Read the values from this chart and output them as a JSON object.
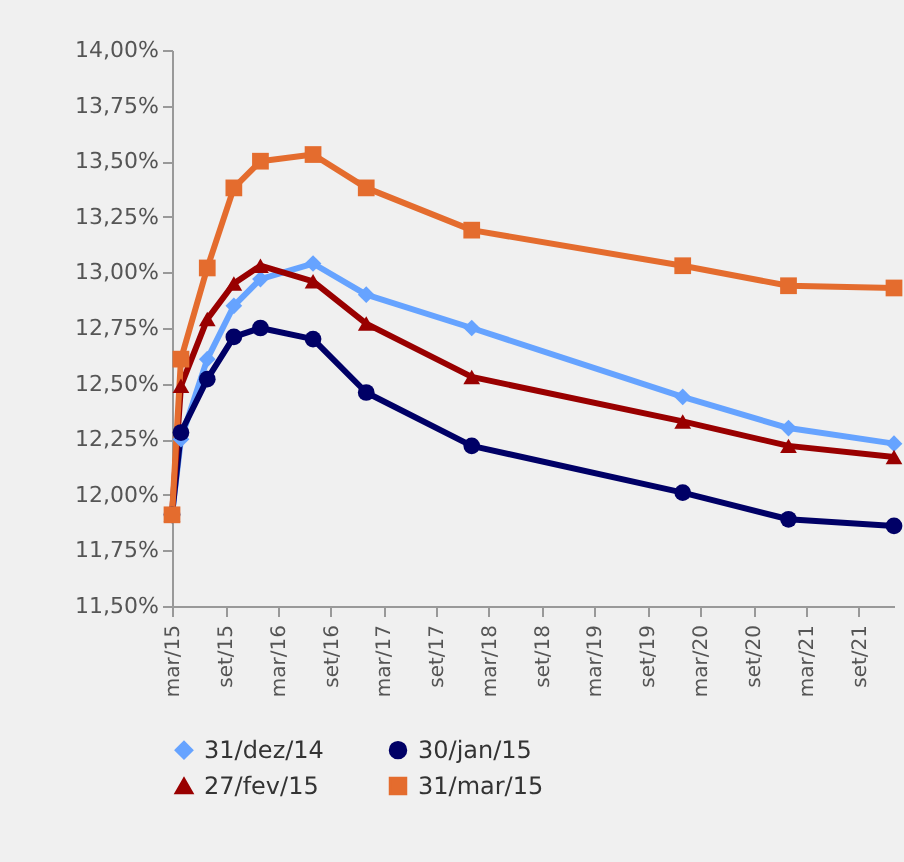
{
  "chart_data": {
    "type": "line",
    "x": [
      "2015-03",
      "2015-04",
      "2015-07",
      "2015-10",
      "2016-01",
      "2016-07",
      "2017-01",
      "2018-01",
      "2020-01",
      "2021-01",
      "2022-01"
    ],
    "series": [
      {
        "name": "31/dez/14",
        "color": "#66a3ff",
        "marker": "diamond",
        "values": [
          11.91,
          12.25,
          12.61,
          12.85,
          12.97,
          13.04,
          12.9,
          12.75,
          12.44,
          12.3,
          12.23
        ]
      },
      {
        "name": "30/jan/15",
        "color": "#000066",
        "marker": "circle",
        "values": [
          11.91,
          12.28,
          12.52,
          12.71,
          12.75,
          12.7,
          12.46,
          12.22,
          12.01,
          11.89,
          11.86
        ]
      },
      {
        "name": "27/fev/15",
        "color": "#990000",
        "marker": "triangle",
        "values": [
          11.91,
          12.49,
          12.79,
          12.95,
          13.03,
          12.96,
          12.77,
          12.53,
          12.33,
          12.22,
          12.17
        ]
      },
      {
        "name": "31/mar/15",
        "color": "#e46c2e",
        "marker": "square",
        "values": [
          11.91,
          12.61,
          13.02,
          13.38,
          13.5,
          13.53,
          13.38,
          13.19,
          13.03,
          12.94,
          12.93
        ]
      }
    ],
    "xlim": [
      "2015-03",
      "2022-01"
    ],
    "xticks": [
      {
        "value": "2015-03",
        "label": "mar/15"
      },
      {
        "value": "2015-09",
        "label": "set/15"
      },
      {
        "value": "2016-03",
        "label": "mar/16"
      },
      {
        "value": "2016-09",
        "label": "set/16"
      },
      {
        "value": "2017-03",
        "label": "mar/17"
      },
      {
        "value": "2017-09",
        "label": "set/17"
      },
      {
        "value": "2018-03",
        "label": "mar/18"
      },
      {
        "value": "2018-09",
        "label": "set/18"
      },
      {
        "value": "2019-03",
        "label": "mar/19"
      },
      {
        "value": "2019-09",
        "label": "set/19"
      },
      {
        "value": "2020-03",
        "label": "mar/20"
      },
      {
        "value": "2020-09",
        "label": "set/20"
      },
      {
        "value": "2021-03",
        "label": "mar/21"
      },
      {
        "value": "2021-09",
        "label": "set/21"
      }
    ],
    "ylim": [
      11.5,
      14
    ],
    "yticks": [
      {
        "value": 11.5,
        "label": "11,50%"
      },
      {
        "value": 11.75,
        "label": "11,75%"
      },
      {
        "value": 12,
        "label": "12,00%"
      },
      {
        "value": 12.25,
        "label": "12,25%"
      },
      {
        "value": 12.5,
        "label": "12,50%"
      },
      {
        "value": 12.75,
        "label": "12,75%"
      },
      {
        "value": 13,
        "label": "13,00%"
      },
      {
        "value": 13.25,
        "label": "13,25%"
      },
      {
        "value": 13.5,
        "label": "13,50%"
      },
      {
        "value": 13.75,
        "label": "13,75%"
      },
      {
        "value": 14,
        "label": "14,00%"
      }
    ],
    "grid": false,
    "legend": "bottom",
    "line_style": "solid"
  }
}
